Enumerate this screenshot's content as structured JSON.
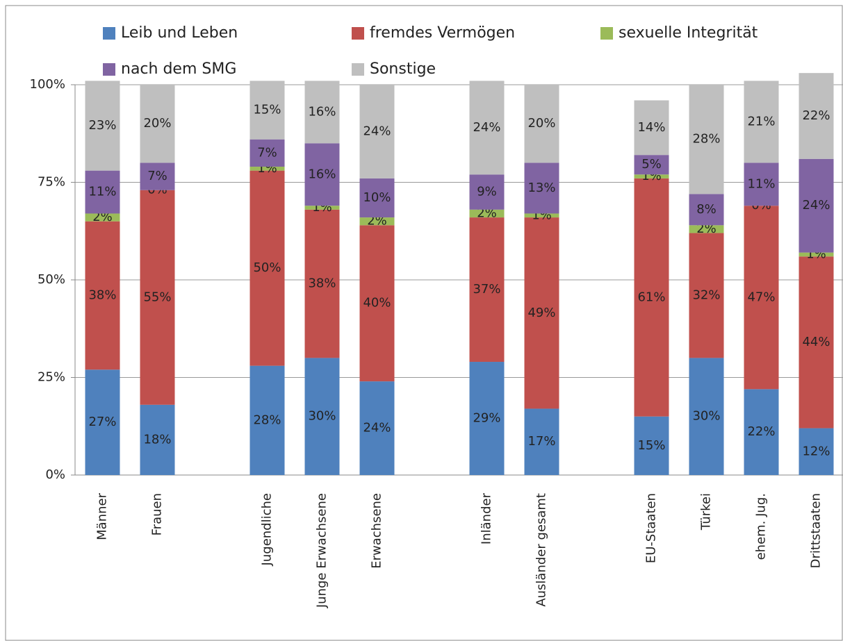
{
  "chart_data": {
    "type": "bar",
    "stacked": true,
    "categories": [
      "Männer",
      "Frauen",
      null,
      "Jugendliche",
      "Junge Erwachsene",
      "Erwachsene",
      null,
      "Inländer",
      "Ausländer gesamt",
      null,
      "EU-Staaten",
      "Türkei",
      "ehem. Jug.",
      "Drittstaaten"
    ],
    "series": [
      {
        "name": "Leib und Leben",
        "color": "#4f81bd",
        "values": [
          27,
          18,
          null,
          28,
          30,
          24,
          null,
          29,
          17,
          null,
          15,
          30,
          22,
          12
        ],
        "value_labels": [
          "27%",
          "18%",
          null,
          "28%",
          "30%",
          "24%",
          null,
          "29%",
          "17%",
          null,
          "15%",
          "30%",
          "22%",
          "12%"
        ]
      },
      {
        "name": "fremdes Vermögen",
        "color": "#c0504d",
        "values": [
          38,
          55,
          null,
          50,
          38,
          40,
          null,
          37,
          49,
          null,
          61,
          32,
          47,
          44
        ],
        "value_labels": [
          "38%",
          "55%",
          null,
          "50%",
          "38%",
          "40%",
          null,
          "37%",
          "49%",
          null,
          "61%",
          "32%",
          "47%",
          "44%"
        ]
      },
      {
        "name": "sexuelle Integrität",
        "color": "#9bbb59",
        "values": [
          2,
          0,
          null,
          1,
          1,
          2,
          null,
          2,
          1,
          null,
          1,
          2,
          0,
          1
        ],
        "value_labels": [
          "2%",
          "0%",
          null,
          "1%",
          "1%",
          "2%",
          null,
          "2%",
          "1%",
          null,
          "1%",
          "2%",
          "0%",
          "1%"
        ]
      },
      {
        "name": "nach dem SMG",
        "color": "#8064a2",
        "values": [
          11,
          7,
          null,
          7,
          16,
          10,
          null,
          9,
          13,
          null,
          5,
          8,
          11,
          24
        ],
        "value_labels": [
          "11%",
          "7%",
          null,
          "7%",
          "16%",
          "10%",
          null,
          "9%",
          "13%",
          null,
          "5%",
          "8%",
          "11%",
          "24%"
        ]
      },
      {
        "name": "Sonstige",
        "color": "#bfbfbf",
        "values": [
          23,
          20,
          null,
          15,
          16,
          24,
          null,
          24,
          20,
          null,
          14,
          28,
          21,
          22
        ],
        "value_labels": [
          "23%",
          "20%",
          null,
          "15%",
          "16%",
          "24%",
          null,
          "24%",
          "20%",
          null,
          "14%",
          "28%",
          "21%",
          "22%"
        ]
      }
    ],
    "ylim": [
      0,
      100
    ],
    "yticks": [
      {
        "value": 0,
        "label": "0%"
      },
      {
        "value": 25,
        "label": "25%"
      },
      {
        "value": 50,
        "label": "50%"
      },
      {
        "value": 75,
        "label": "75%"
      },
      {
        "value": 100,
        "label": "100%"
      }
    ],
    "grid": true,
    "legend": "top"
  }
}
